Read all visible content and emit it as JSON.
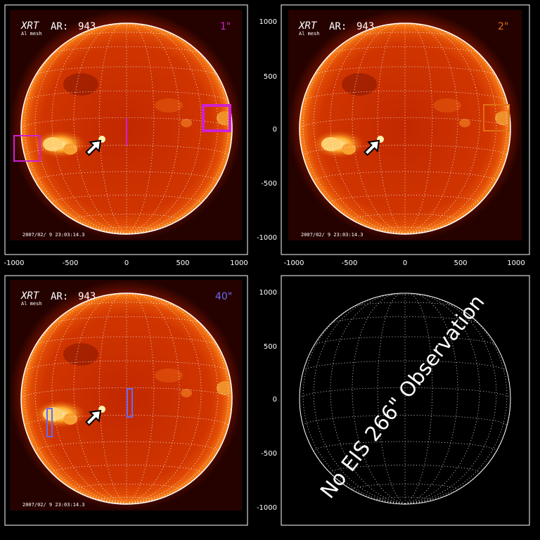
{
  "panels": [
    {
      "instrument": "XRT",
      "filter": "Al mesh",
      "ar_label": "AR:",
      "ar_number": "943",
      "slit": "1\"",
      "slit_color": "#d020d0",
      "timestamp": "2007/02/ 9 23:03:14.3",
      "x_ticks": [
        "-1000",
        "-500",
        "0",
        "500",
        "1000"
      ],
      "y_ticks": [
        "1000",
        "500",
        "0",
        "-500",
        "-1000"
      ]
    },
    {
      "instrument": "XRT",
      "filter": "Al mesh",
      "ar_label": "AR:",
      "ar_number": "943",
      "slit": "2\"",
      "slit_color": "#e07010",
      "timestamp": "2007/02/ 9 23:03:14.3",
      "x_ticks": [
        "-1000",
        "-500",
        "0",
        "500",
        "1000"
      ],
      "y_ticks": [
        "1000",
        "500",
        "0",
        "-500",
        "-1000"
      ]
    },
    {
      "instrument": "XRT",
      "filter": "Al mesh",
      "ar_label": "AR:",
      "ar_number": "943",
      "slit": "40\"",
      "slit_color": "#6a6af0",
      "timestamp": "2007/02/ 9 23:03:14.3",
      "y_ticks": [
        "1000",
        "500",
        "0",
        "-500",
        "-1000"
      ]
    },
    {
      "message": "No EIS 266\" Observation",
      "y_ticks": [
        "1000",
        "500",
        "0",
        "-500",
        "-1000"
      ]
    }
  ]
}
